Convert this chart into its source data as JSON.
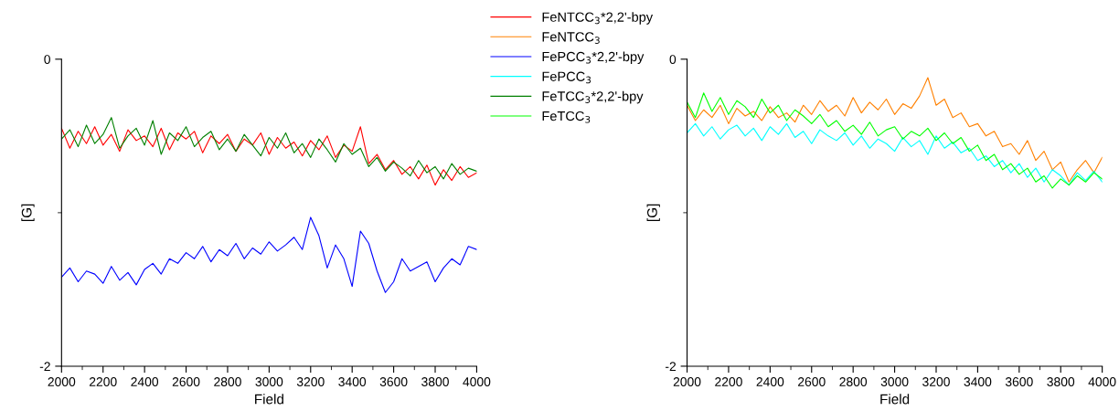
{
  "chart_data": [
    {
      "type": "line",
      "xlabel": "Field",
      "ylabel": "[G]",
      "xlim": [
        2000,
        4000
      ],
      "ylim": [
        -2,
        0
      ],
      "xticks": [
        2000,
        {
          "value": 2100,
          "label": null
        },
        2200,
        {
          "value": 2300,
          "label": null
        },
        2400,
        {
          "value": 2500,
          "label": null
        },
        2600,
        {
          "value": 2700,
          "label": null
        },
        2800,
        {
          "value": 2900,
          "label": null
        },
        3000,
        {
          "value": 3100,
          "label": null
        },
        3200,
        {
          "value": 3300,
          "label": null
        },
        3400,
        {
          "value": 3500,
          "label": null
        },
        3600,
        {
          "value": 3700,
          "label": null
        },
        3800,
        {
          "value": 3900,
          "label": null
        },
        4000
      ],
      "yticks": [
        -2,
        {
          "value": -1,
          "label": null
        },
        0
      ],
      "legend": "top right",
      "x": [
        2000,
        2040,
        2080,
        2120,
        2160,
        2200,
        2240,
        2280,
        2320,
        2360,
        2400,
        2440,
        2480,
        2520,
        2560,
        2600,
        2640,
        2680,
        2720,
        2760,
        2800,
        2840,
        2880,
        2920,
        2960,
        3000,
        3040,
        3080,
        3120,
        3160,
        3200,
        3240,
        3280,
        3320,
        3360,
        3400,
        3440,
        3480,
        3520,
        3560,
        3600,
        3640,
        3680,
        3720,
        3760,
        3800,
        3840,
        3880,
        3920,
        3960,
        4000
      ],
      "series": [
        {
          "name": "FeNTCC$_{3}$*2,2'-bpy",
          "color": "#ff0000",
          "values": [
            -0.45,
            -0.58,
            -0.47,
            -0.55,
            -0.44,
            -0.56,
            -0.49,
            -0.6,
            -0.46,
            -0.53,
            -0.5,
            -0.57,
            -0.45,
            -0.59,
            -0.48,
            -0.52,
            -0.47,
            -0.61,
            -0.5,
            -0.55,
            -0.49,
            -0.6,
            -0.52,
            -0.56,
            -0.48,
            -0.62,
            -0.51,
            -0.58,
            -0.54,
            -0.63,
            -0.53,
            -0.59,
            -0.5,
            -0.64,
            -0.56,
            -0.6,
            -0.44,
            -0.68,
            -0.62,
            -0.72,
            -0.66,
            -0.75,
            -0.7,
            -0.78,
            -0.69,
            -0.82,
            -0.72,
            -0.79,
            -0.7,
            -0.77,
            -0.74
          ]
        },
        {
          "name": "FePCC$_{3}$*2,2'-bpy",
          "color": "#0000ff",
          "values": [
            -1.42,
            -1.36,
            -1.45,
            -1.38,
            -1.4,
            -1.46,
            -1.35,
            -1.44,
            -1.39,
            -1.47,
            -1.37,
            -1.33,
            -1.4,
            -1.3,
            -1.33,
            -1.26,
            -1.3,
            -1.22,
            -1.32,
            -1.24,
            -1.28,
            -1.2,
            -1.3,
            -1.23,
            -1.27,
            -1.19,
            -1.25,
            -1.21,
            -1.16,
            -1.24,
            -1.03,
            -1.15,
            -1.36,
            -1.21,
            -1.3,
            -1.48,
            -1.12,
            -1.2,
            -1.38,
            -1.52,
            -1.45,
            -1.3,
            -1.38,
            -1.35,
            -1.32,
            -1.45,
            -1.36,
            -1.3,
            -1.34,
            -1.22,
            -1.24
          ]
        },
        {
          "name": "FeTCC$_{3}$*2,2'-bpy",
          "color": "#008000",
          "values": [
            -0.52,
            -0.46,
            -0.57,
            -0.43,
            -0.55,
            -0.49,
            -0.38,
            -0.58,
            -0.5,
            -0.45,
            -0.56,
            -0.4,
            -0.62,
            -0.48,
            -0.53,
            -0.44,
            -0.57,
            -0.51,
            -0.47,
            -0.59,
            -0.52,
            -0.6,
            -0.49,
            -0.56,
            -0.63,
            -0.51,
            -0.58,
            -0.48,
            -0.61,
            -0.55,
            -0.64,
            -0.52,
            -0.59,
            -0.67,
            -0.55,
            -0.62,
            -0.58,
            -0.7,
            -0.64,
            -0.73,
            -0.67,
            -0.71,
            -0.76,
            -0.66,
            -0.74,
            -0.7,
            -0.78,
            -0.68,
            -0.75,
            -0.71,
            -0.73
          ]
        }
      ]
    },
    {
      "type": "line",
      "xlabel": "Field",
      "ylabel": "[G]",
      "xlim": [
        2000,
        4000
      ],
      "ylim": [
        -2,
        0
      ],
      "xticks": [
        2000,
        {
          "value": 2100,
          "label": null
        },
        2200,
        {
          "value": 2300,
          "label": null
        },
        2400,
        {
          "value": 2500,
          "label": null
        },
        2600,
        {
          "value": 2700,
          "label": null
        },
        2800,
        {
          "value": 2900,
          "label": null
        },
        3000,
        {
          "value": 3100,
          "label": null
        },
        3200,
        {
          "value": 3300,
          "label": null
        },
        3400,
        {
          "value": 3500,
          "label": null
        },
        3600,
        {
          "value": 3700,
          "label": null
        },
        3800,
        {
          "value": 3900,
          "label": null
        },
        4000
      ],
      "yticks": [
        -2,
        {
          "value": -1,
          "label": null
        },
        0
      ],
      "legend": "top left",
      "x": [
        2000,
        2040,
        2080,
        2120,
        2160,
        2200,
        2240,
        2280,
        2320,
        2360,
        2400,
        2440,
        2480,
        2520,
        2560,
        2600,
        2640,
        2680,
        2720,
        2760,
        2800,
        2840,
        2880,
        2920,
        2960,
        3000,
        3040,
        3080,
        3120,
        3160,
        3200,
        3240,
        3280,
        3320,
        3360,
        3400,
        3440,
        3480,
        3520,
        3560,
        3600,
        3640,
        3680,
        3720,
        3760,
        3800,
        3840,
        3880,
        3920,
        3960,
        4000
      ],
      "series": [
        {
          "name": "FeNTCC$_{3}$",
          "color": "#ff8000",
          "values": [
            -0.3,
            -0.4,
            -0.33,
            -0.38,
            -0.3,
            -0.42,
            -0.32,
            -0.37,
            -0.34,
            -0.4,
            -0.31,
            -0.38,
            -0.35,
            -0.41,
            -0.3,
            -0.36,
            -0.27,
            -0.34,
            -0.3,
            -0.37,
            -0.25,
            -0.35,
            -0.28,
            -0.33,
            -0.26,
            -0.36,
            -0.29,
            -0.32,
            -0.24,
            -0.12,
            -0.3,
            -0.26,
            -0.38,
            -0.35,
            -0.44,
            -0.42,
            -0.5,
            -0.47,
            -0.57,
            -0.55,
            -0.62,
            -0.53,
            -0.66,
            -0.6,
            -0.72,
            -0.67,
            -0.8,
            -0.72,
            -0.66,
            -0.74,
            -0.64
          ]
        },
        {
          "name": "FePCC$_{3}$",
          "color": "#00ffff",
          "values": [
            -0.48,
            -0.42,
            -0.5,
            -0.44,
            -0.52,
            -0.46,
            -0.43,
            -0.5,
            -0.45,
            -0.53,
            -0.44,
            -0.49,
            -0.42,
            -0.51,
            -0.47,
            -0.55,
            -0.46,
            -0.5,
            -0.53,
            -0.48,
            -0.56,
            -0.5,
            -0.58,
            -0.52,
            -0.55,
            -0.6,
            -0.51,
            -0.57,
            -0.53,
            -0.62,
            -0.5,
            -0.58,
            -0.54,
            -0.61,
            -0.58,
            -0.66,
            -0.63,
            -0.7,
            -0.66,
            -0.74,
            -0.68,
            -0.77,
            -0.71,
            -0.8,
            -0.72,
            -0.76,
            -0.82,
            -0.74,
            -0.79,
            -0.73,
            -0.8
          ]
        },
        {
          "name": "FeTCC$_{3}$",
          "color": "#00ff00",
          "values": [
            -0.28,
            -0.38,
            -0.22,
            -0.34,
            -0.25,
            -0.36,
            -0.27,
            -0.31,
            -0.38,
            -0.26,
            -0.35,
            -0.3,
            -0.4,
            -0.33,
            -0.37,
            -0.42,
            -0.36,
            -0.44,
            -0.4,
            -0.47,
            -0.43,
            -0.49,
            -0.41,
            -0.5,
            -0.46,
            -0.44,
            -0.52,
            -0.47,
            -0.5,
            -0.45,
            -0.53,
            -0.48,
            -0.55,
            -0.51,
            -0.6,
            -0.56,
            -0.66,
            -0.62,
            -0.72,
            -0.68,
            -0.75,
            -0.71,
            -0.8,
            -0.76,
            -0.84,
            -0.78,
            -0.82,
            -0.76,
            -0.8,
            -0.74,
            -0.78
          ]
        }
      ]
    }
  ]
}
